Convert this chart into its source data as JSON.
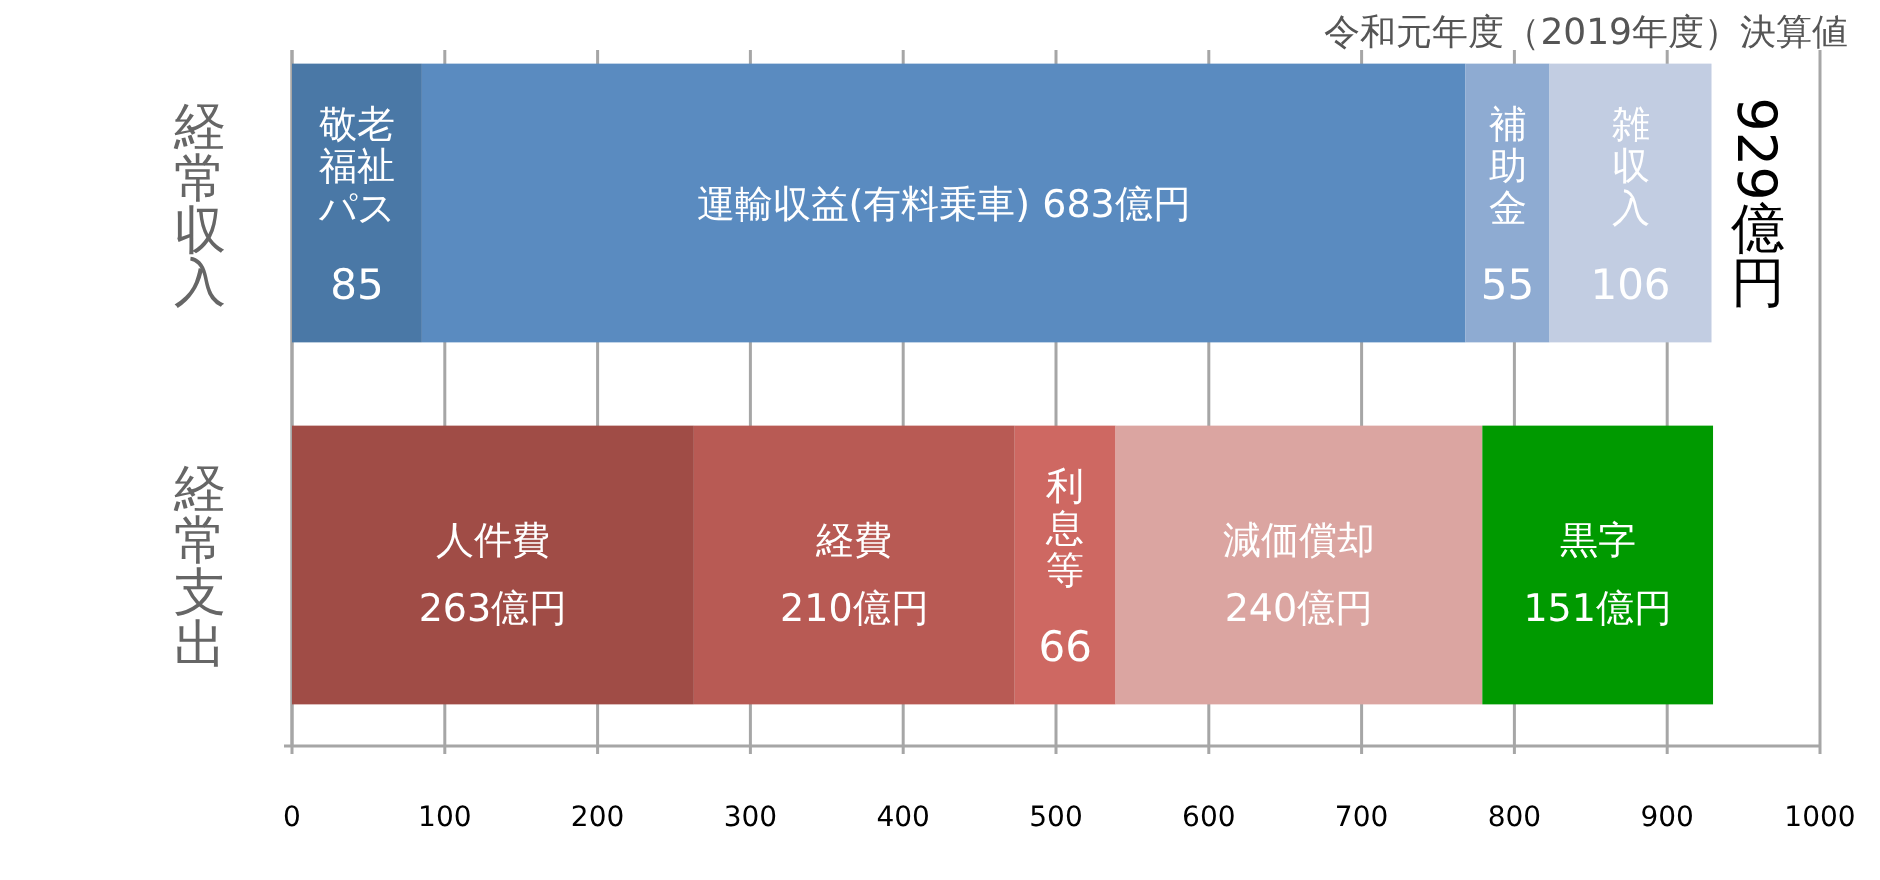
{
  "chart_data": {
    "type": "bar",
    "orientation": "horizontal",
    "stacked": true,
    "title": "令和元年度（2019年度）決算値",
    "categories": [
      "経常収入",
      "経常支出"
    ],
    "series": [
      {
        "name": "敬老福祉パス",
        "color": "#4a78a6",
        "values": [
          85,
          null
        ],
        "value_labels": [
          "85",
          null
        ]
      },
      {
        "name": "運輸収益(有料乗車)",
        "color": "#5a8bc0",
        "values": [
          683,
          null
        ],
        "value_labels": [
          "683億円",
          null
        ]
      },
      {
        "name": "補助金",
        "color": "#8eabd2",
        "values": [
          55,
          null
        ],
        "value_labels": [
          "55",
          null
        ]
      },
      {
        "name": "雑収入",
        "color": "#c2cde2",
        "values": [
          106,
          null
        ],
        "value_labels": [
          "106",
          null
        ]
      },
      {
        "name": "人件費",
        "color": "#a04c46",
        "values": [
          null,
          263
        ],
        "value_labels": [
          null,
          "263億円"
        ]
      },
      {
        "name": "経費",
        "color": "#b85a54",
        "values": [
          null,
          210
        ],
        "value_labels": [
          null,
          "210億円"
        ]
      },
      {
        "name": "利息等",
        "color": "#ce6862",
        "values": [
          null,
          66
        ],
        "value_labels": [
          null,
          "66"
        ]
      },
      {
        "name": "減価償却",
        "color": "#dba5a1",
        "values": [
          null,
          240
        ],
        "value_labels": [
          null,
          "240億円"
        ]
      },
      {
        "name": "黒字",
        "color": "#009a00",
        "values": [
          null,
          151
        ],
        "value_labels": [
          null,
          "151億円"
        ]
      }
    ],
    "totals": [
      "929億円",
      null
    ],
    "xlim": [
      0,
      1000
    ],
    "xticks": [
      0,
      100,
      200,
      300,
      400,
      500,
      600,
      700,
      800,
      900,
      1000
    ],
    "grid": "x",
    "legend": false
  }
}
